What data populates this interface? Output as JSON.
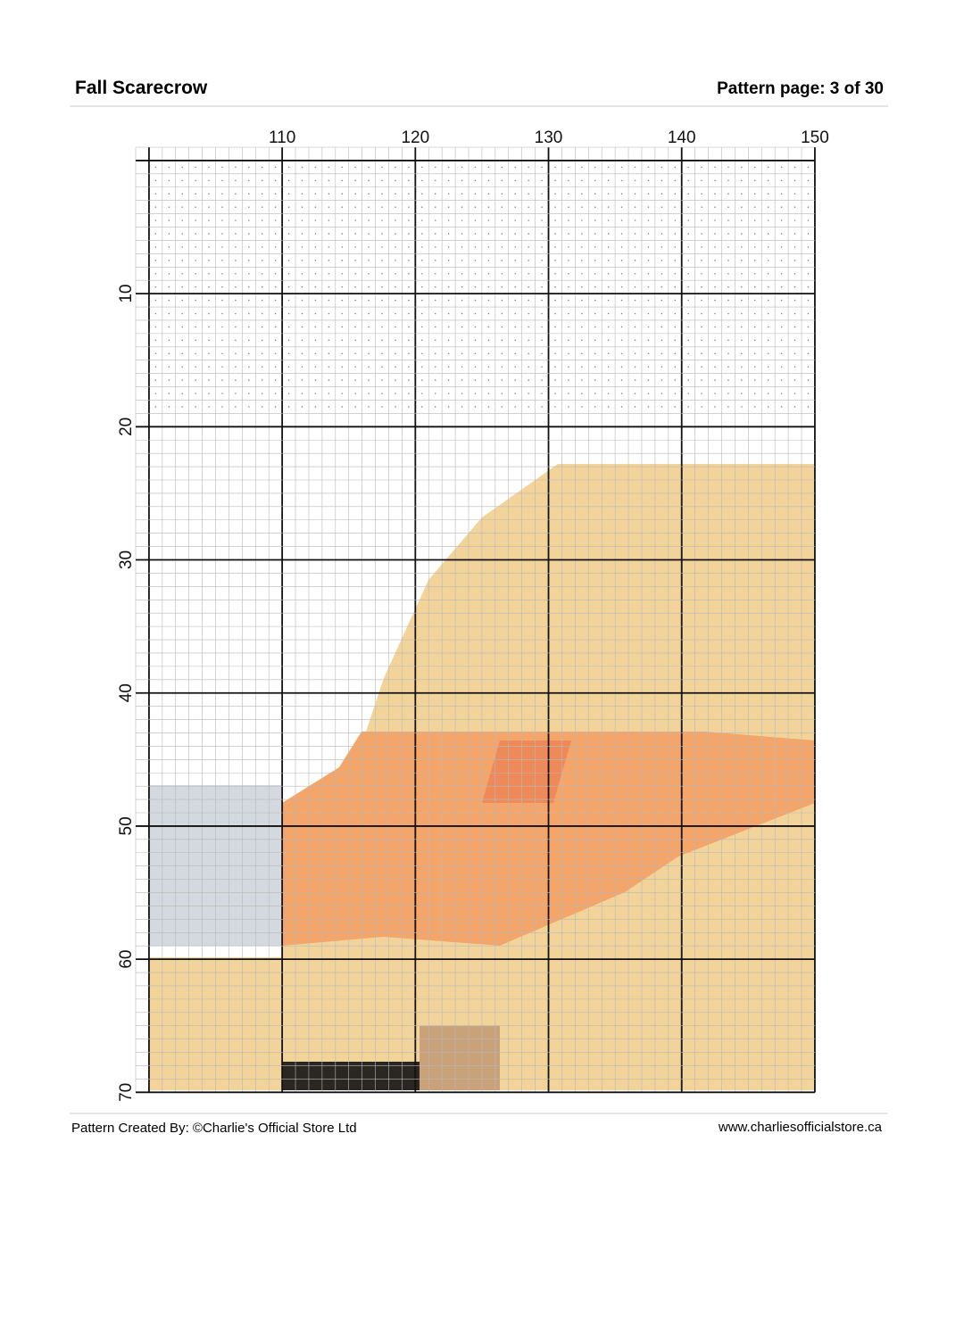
{
  "header": {
    "title": "Fall Scarecrow",
    "page": "Pattern page: 3 of 30"
  },
  "columns": [
    "110",
    "120",
    "130",
    "140",
    "150"
  ],
  "rows": [
    "10",
    "20",
    "30",
    "40",
    "50",
    "60",
    "70"
  ],
  "footer": {
    "credit": "Pattern Created By: ©Charlie's Official Store Ltd",
    "url": "www.charliesofficialstore.ca"
  }
}
